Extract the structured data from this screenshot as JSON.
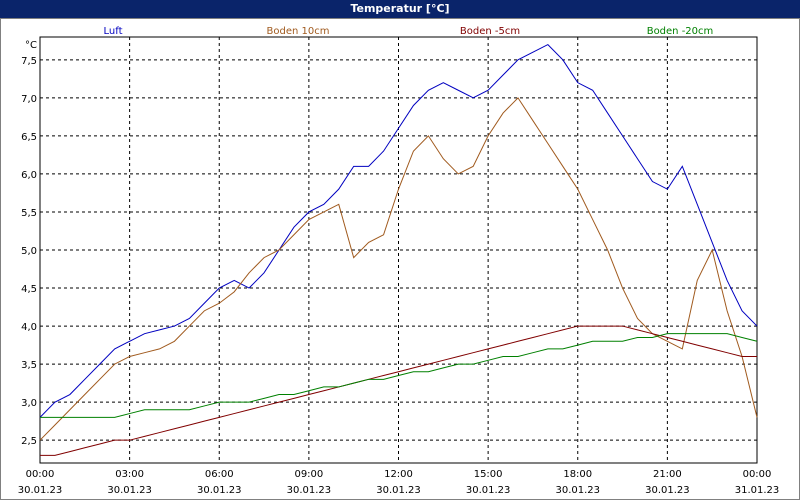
{
  "window": {
    "title": "Temperatur [°C]"
  },
  "chart_data": {
    "type": "line",
    "title": "Temperatur [°C]",
    "yunit": "°C",
    "ylim": [
      2.2,
      7.8
    ],
    "grid": true,
    "legend_placement": "top",
    "x_ticks": [
      {
        "time": "00:00",
        "date": "30.01.23"
      },
      {
        "time": "03:00",
        "date": "30.01.23"
      },
      {
        "time": "06:00",
        "date": "30.01.23"
      },
      {
        "time": "09:00",
        "date": "30.01.23"
      },
      {
        "time": "12:00",
        "date": "30.01.23"
      },
      {
        "time": "15:00",
        "date": "30.01.23"
      },
      {
        "time": "18:00",
        "date": "30.01.23"
      },
      {
        "time": "21:00",
        "date": "30.01.23"
      },
      {
        "time": "00:00",
        "date": "31.01.23"
      }
    ],
    "y_ticks": [
      "2,5",
      "3,0",
      "3,5",
      "4,0",
      "4,5",
      "5,0",
      "5,5",
      "6,0",
      "6,5",
      "7,0",
      "7,5"
    ],
    "y_tick_values": [
      2.5,
      3.0,
      3.5,
      4.0,
      4.5,
      5.0,
      5.5,
      6.0,
      6.5,
      7.0,
      7.5
    ],
    "x_hours": [
      0,
      0.5,
      1,
      1.5,
      2,
      2.5,
      3,
      3.5,
      4,
      4.5,
      5,
      5.5,
      6,
      6.5,
      7,
      7.5,
      8,
      8.5,
      9,
      9.5,
      10,
      10.5,
      11,
      11.5,
      12,
      12.5,
      13,
      13.5,
      14,
      14.5,
      15,
      15.5,
      16,
      16.5,
      17,
      17.5,
      18,
      18.5,
      19,
      19.5,
      20,
      20.5,
      21,
      21.5,
      22,
      22.5,
      23,
      23.5,
      24
    ],
    "series": [
      {
        "name": "Luft",
        "color": "#0000c0",
        "values": [
          2.8,
          3.0,
          3.1,
          3.3,
          3.5,
          3.7,
          3.8,
          3.9,
          3.95,
          4.0,
          4.1,
          4.3,
          4.5,
          4.6,
          4.5,
          4.7,
          5.0,
          5.3,
          5.5,
          5.6,
          5.8,
          6.1,
          6.1,
          6.3,
          6.6,
          6.9,
          7.1,
          7.2,
          7.1,
          7.0,
          7.1,
          7.3,
          7.5,
          7.6,
          7.7,
          7.5,
          7.2,
          7.1,
          6.8,
          6.5,
          6.2,
          5.9,
          5.8,
          6.1,
          5.6,
          5.1,
          4.6,
          4.2,
          4.0
        ]
      },
      {
        "name": "Boden 10cm",
        "color": "#a05a1e",
        "values": [
          2.5,
          2.7,
          2.9,
          3.1,
          3.3,
          3.5,
          3.6,
          3.65,
          3.7,
          3.8,
          4.0,
          4.2,
          4.3,
          4.45,
          4.7,
          4.9,
          5.0,
          5.2,
          5.4,
          5.5,
          5.6,
          4.9,
          5.1,
          5.2,
          5.8,
          6.3,
          6.5,
          6.2,
          6.0,
          6.1,
          6.5,
          6.8,
          7.0,
          6.7,
          6.4,
          6.1,
          5.8,
          5.4,
          5.0,
          4.5,
          4.1,
          3.9,
          3.8,
          3.7,
          4.6,
          5.0,
          4.2,
          3.6,
          2.8
        ]
      },
      {
        "name": "Boden -5cm",
        "color": "#800000",
        "values": [
          2.3,
          2.3,
          2.35,
          2.4,
          2.45,
          2.5,
          2.5,
          2.55,
          2.6,
          2.65,
          2.7,
          2.75,
          2.8,
          2.85,
          2.9,
          2.95,
          3.0,
          3.05,
          3.1,
          3.15,
          3.2,
          3.25,
          3.3,
          3.35,
          3.4,
          3.45,
          3.5,
          3.55,
          3.6,
          3.65,
          3.7,
          3.75,
          3.8,
          3.85,
          3.9,
          3.95,
          4.0,
          4.0,
          4.0,
          4.0,
          3.95,
          3.9,
          3.85,
          3.8,
          3.75,
          3.7,
          3.65,
          3.6,
          3.6
        ]
      },
      {
        "name": "Boden -20cm",
        "color": "#008000",
        "values": [
          2.8,
          2.8,
          2.8,
          2.8,
          2.8,
          2.8,
          2.85,
          2.9,
          2.9,
          2.9,
          2.9,
          2.95,
          3.0,
          3.0,
          3.0,
          3.05,
          3.1,
          3.1,
          3.15,
          3.2,
          3.2,
          3.25,
          3.3,
          3.3,
          3.35,
          3.4,
          3.4,
          3.45,
          3.5,
          3.5,
          3.55,
          3.6,
          3.6,
          3.65,
          3.7,
          3.7,
          3.75,
          3.8,
          3.8,
          3.8,
          3.85,
          3.85,
          3.9,
          3.9,
          3.9,
          3.9,
          3.9,
          3.85,
          3.8
        ]
      }
    ]
  }
}
